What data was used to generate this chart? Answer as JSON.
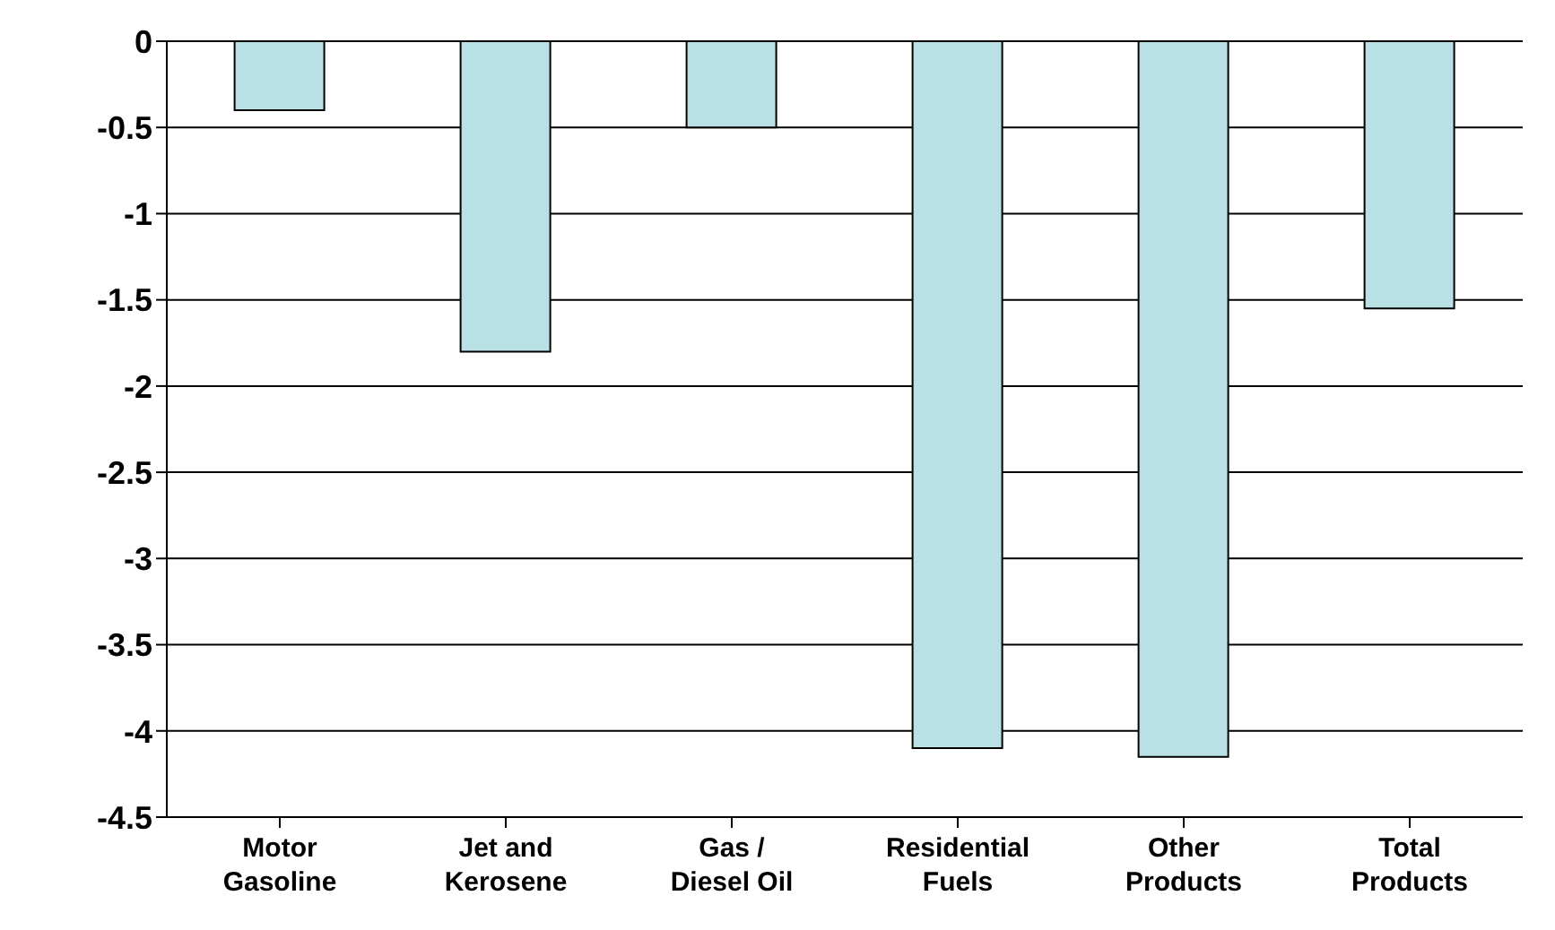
{
  "chart_data": {
    "type": "bar",
    "categories": [
      "Motor Gasoline",
      "Jet and Kerosene",
      "Gas / Diesel Oil",
      "Residential Fuels",
      "Other Products",
      "Total Products"
    ],
    "values": [
      -0.4,
      -1.8,
      -0.5,
      -4.1,
      -4.15,
      -1.55
    ],
    "color": "#b9e0e4",
    "ylim": [
      -4.5,
      0
    ],
    "yticks": [
      0,
      -0.5,
      -1,
      -1.5,
      -2,
      -2.5,
      -3,
      -3.5,
      -4,
      -4.5
    ],
    "grid": "y",
    "legend": false
  }
}
